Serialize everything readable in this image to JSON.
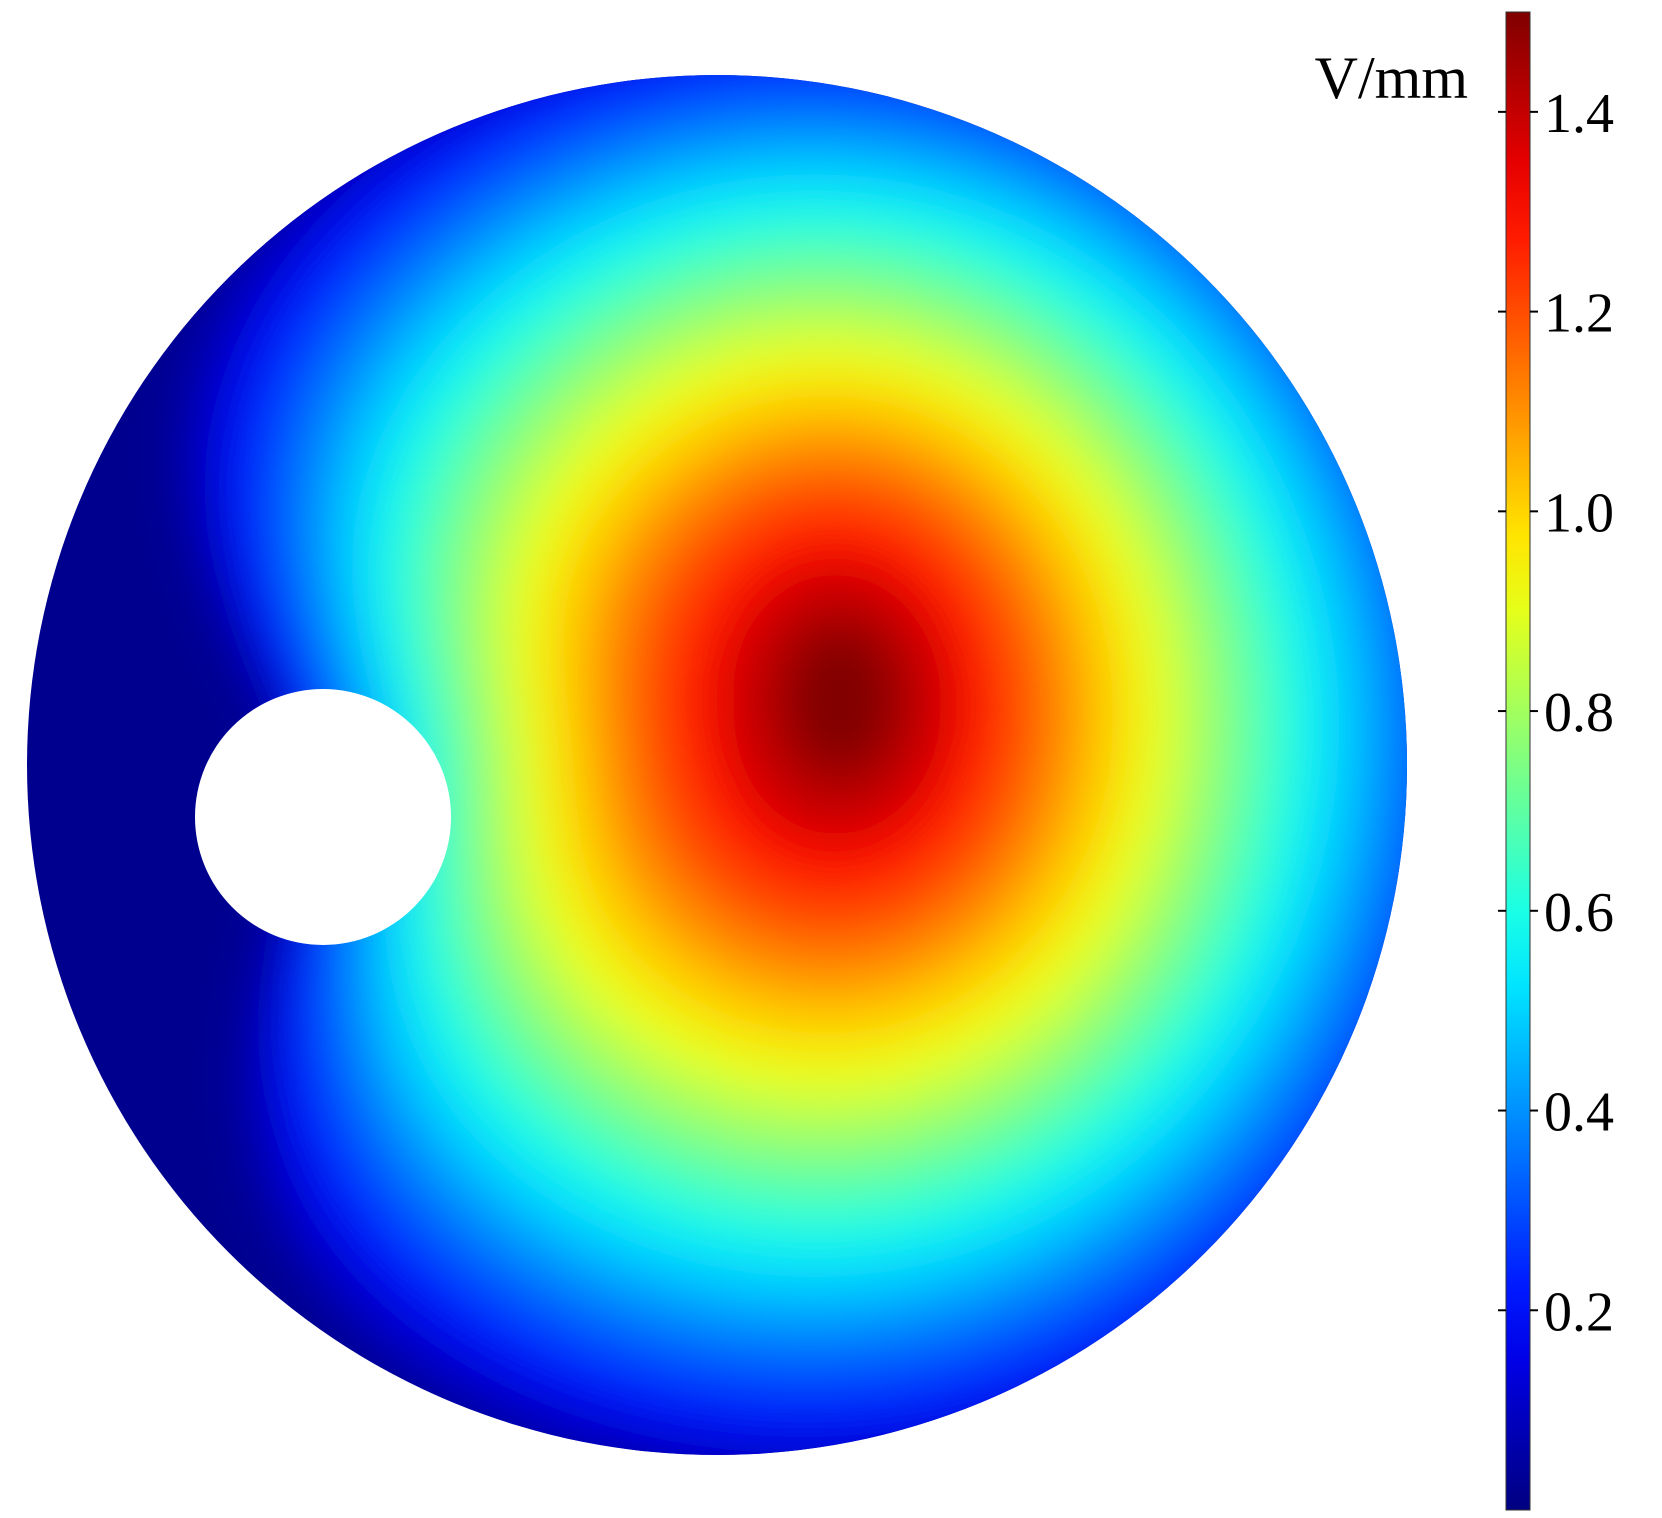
{
  "chart_data": {
    "type": "heatmap",
    "title": "",
    "colorbar": {
      "unit": "V/mm",
      "colormap": "jet",
      "range": [
        0.0,
        1.5
      ],
      "ticks": [
        {
          "value": 0.2,
          "label": "0.2"
        },
        {
          "value": 0.4,
          "label": "0.4"
        },
        {
          "value": 0.6,
          "label": "0.6"
        },
        {
          "value": 0.8,
          "label": "0.8"
        },
        {
          "value": 1.0,
          "label": "1.0"
        },
        {
          "value": 1.2,
          "label": "1.2"
        },
        {
          "value": 1.4,
          "label": "1.4"
        }
      ]
    },
    "field": {
      "domain": "disk with circular hole",
      "min_value": 0.0,
      "max_value": 1.5
    }
  }
}
